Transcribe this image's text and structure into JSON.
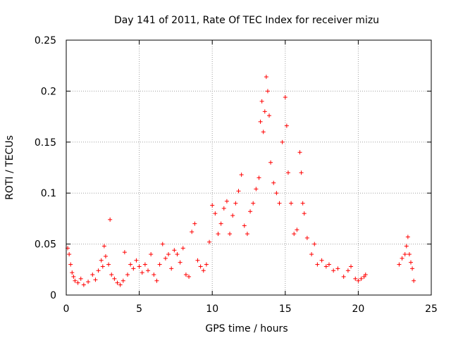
{
  "chart_data": {
    "type": "scatter",
    "title": "Day 141 of 2011, Rate Of TEC Index for receiver mizu",
    "xlabel": "GPS time / hours",
    "ylabel": "ROTI / TECUs",
    "xlim": [
      0,
      25
    ],
    "ylim": [
      0,
      0.25
    ],
    "grid": true,
    "marker": "+",
    "color": "#ff0000",
    "xticks": [
      0,
      5,
      10,
      15,
      20,
      25
    ],
    "yticks": [
      0,
      0.05,
      0.1,
      0.15,
      0.2,
      0.25
    ],
    "xtick_labels": [
      "0",
      "5",
      "10",
      "15",
      "20",
      "25"
    ],
    "ytick_labels": [
      "0",
      "0.05",
      "0.1",
      "0.15",
      "0.2",
      "0.25"
    ],
    "series": [
      {
        "name": "ROTI",
        "points": [
          [
            0.1,
            0.046
          ],
          [
            0.2,
            0.04
          ],
          [
            0.3,
            0.03
          ],
          [
            0.4,
            0.022
          ],
          [
            0.5,
            0.018
          ],
          [
            0.6,
            0.014
          ],
          [
            0.8,
            0.012
          ],
          [
            1.0,
            0.016
          ],
          [
            1.2,
            0.01
          ],
          [
            1.5,
            0.013
          ],
          [
            1.8,
            0.02
          ],
          [
            2.0,
            0.015
          ],
          [
            2.2,
            0.024
          ],
          [
            2.4,
            0.034
          ],
          [
            2.5,
            0.028
          ],
          [
            2.6,
            0.048
          ],
          [
            2.7,
            0.038
          ],
          [
            2.9,
            0.03
          ],
          [
            3.0,
            0.074
          ],
          [
            3.1,
            0.02
          ],
          [
            3.3,
            0.016
          ],
          [
            3.5,
            0.012
          ],
          [
            3.7,
            0.01
          ],
          [
            3.9,
            0.014
          ],
          [
            4.0,
            0.042
          ],
          [
            4.2,
            0.02
          ],
          [
            4.4,
            0.03
          ],
          [
            4.6,
            0.026
          ],
          [
            4.8,
            0.034
          ],
          [
            5.0,
            0.028
          ],
          [
            5.2,
            0.022
          ],
          [
            5.4,
            0.03
          ],
          [
            5.6,
            0.024
          ],
          [
            5.8,
            0.04
          ],
          [
            6.0,
            0.02
          ],
          [
            6.2,
            0.014
          ],
          [
            6.4,
            0.03
          ],
          [
            6.6,
            0.05
          ],
          [
            6.8,
            0.036
          ],
          [
            7.0,
            0.04
          ],
          [
            7.2,
            0.026
          ],
          [
            7.4,
            0.044
          ],
          [
            7.6,
            0.04
          ],
          [
            7.8,
            0.032
          ],
          [
            8.0,
            0.046
          ],
          [
            8.2,
            0.02
          ],
          [
            8.4,
            0.018
          ],
          [
            8.6,
            0.062
          ],
          [
            8.8,
            0.07
          ],
          [
            9.0,
            0.034
          ],
          [
            9.2,
            0.028
          ],
          [
            9.4,
            0.024
          ],
          [
            9.6,
            0.03
          ],
          [
            9.8,
            0.052
          ],
          [
            10.0,
            0.088
          ],
          [
            10.2,
            0.08
          ],
          [
            10.4,
            0.06
          ],
          [
            10.6,
            0.07
          ],
          [
            10.8,
            0.085
          ],
          [
            11.0,
            0.092
          ],
          [
            11.2,
            0.06
          ],
          [
            11.4,
            0.078
          ],
          [
            11.6,
            0.09
          ],
          [
            11.8,
            0.102
          ],
          [
            12.0,
            0.118
          ],
          [
            12.2,
            0.068
          ],
          [
            12.4,
            0.06
          ],
          [
            12.6,
            0.082
          ],
          [
            12.8,
            0.09
          ],
          [
            13.0,
            0.104
          ],
          [
            13.2,
            0.115
          ],
          [
            13.3,
            0.17
          ],
          [
            13.4,
            0.19
          ],
          [
            13.5,
            0.16
          ],
          [
            13.6,
            0.18
          ],
          [
            13.7,
            0.214
          ],
          [
            13.8,
            0.2
          ],
          [
            13.9,
            0.176
          ],
          [
            14.0,
            0.13
          ],
          [
            14.2,
            0.11
          ],
          [
            14.4,
            0.1
          ],
          [
            14.6,
            0.09
          ],
          [
            14.8,
            0.15
          ],
          [
            15.0,
            0.194
          ],
          [
            15.1,
            0.166
          ],
          [
            15.2,
            0.12
          ],
          [
            15.4,
            0.09
          ],
          [
            15.6,
            0.06
          ],
          [
            15.8,
            0.064
          ],
          [
            16.0,
            0.14
          ],
          [
            16.1,
            0.12
          ],
          [
            16.2,
            0.09
          ],
          [
            16.3,
            0.08
          ],
          [
            16.5,
            0.056
          ],
          [
            16.8,
            0.04
          ],
          [
            17.0,
            0.05
          ],
          [
            17.2,
            0.03
          ],
          [
            17.5,
            0.034
          ],
          [
            17.8,
            0.028
          ],
          [
            18.0,
            0.03
          ],
          [
            18.3,
            0.024
          ],
          [
            18.6,
            0.026
          ],
          [
            19.0,
            0.018
          ],
          [
            19.3,
            0.024
          ],
          [
            19.5,
            0.028
          ],
          [
            19.8,
            0.016
          ],
          [
            20.0,
            0.014
          ],
          [
            20.2,
            0.016
          ],
          [
            20.4,
            0.018
          ],
          [
            20.5,
            0.02
          ],
          [
            22.8,
            0.03
          ],
          [
            23.0,
            0.036
          ],
          [
            23.2,
            0.04
          ],
          [
            23.3,
            0.048
          ],
          [
            23.4,
            0.057
          ],
          [
            23.5,
            0.04
          ],
          [
            23.6,
            0.032
          ],
          [
            23.7,
            0.026
          ],
          [
            23.8,
            0.014
          ]
        ]
      }
    ]
  }
}
